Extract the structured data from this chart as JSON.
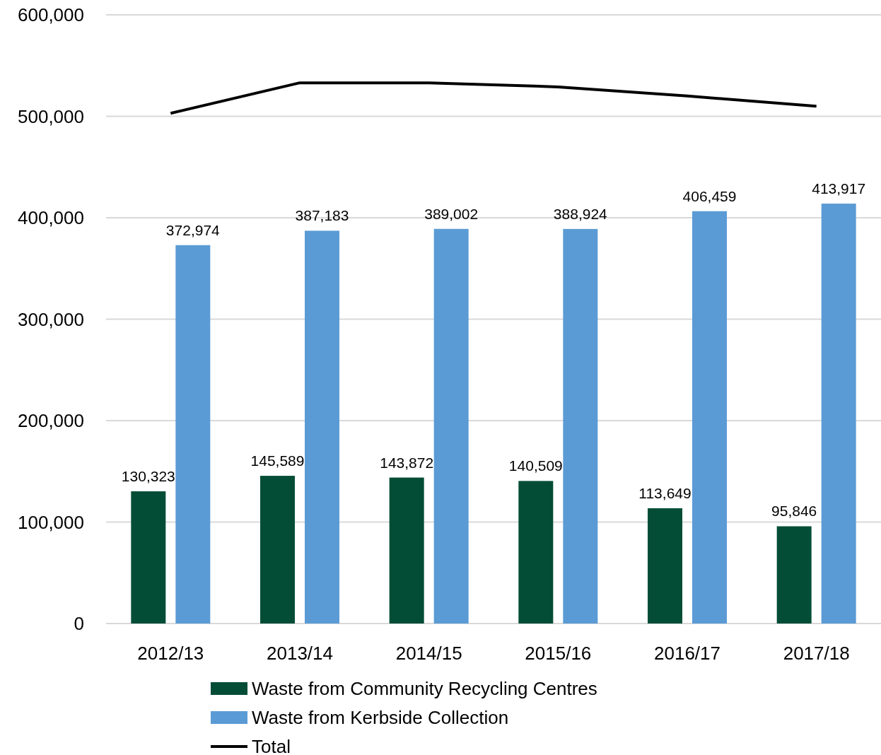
{
  "chart_data": {
    "type": "bar",
    "categories": [
      "2012/13",
      "2013/14",
      "2014/15",
      "2015/16",
      "2016/17",
      "2017/18"
    ],
    "series": [
      {
        "name": "Waste from Community Recycling Centres",
        "color": "#034d36",
        "values": [
          130323,
          145589,
          143872,
          140509,
          113649,
          95846
        ],
        "value_labels": [
          "130,323",
          "145,589",
          "143,872",
          "140,509",
          "113,649",
          "95,846"
        ]
      },
      {
        "name": "Waste from Kerbside Collection",
        "color": "#5b9bd5",
        "values": [
          372974,
          387183,
          389002,
          388924,
          406459,
          413917
        ],
        "value_labels": [
          "372,974",
          "387,183",
          "389,002",
          "388,924",
          "406,459",
          "413,917"
        ]
      },
      {
        "name": "Total",
        "type": "line",
        "color": "#000000",
        "values": [
          503000,
          533000,
          533000,
          529000,
          520000,
          510000
        ]
      }
    ],
    "ylim": [
      0,
      600000
    ],
    "yticks": [
      {
        "value": 0,
        "label": "0"
      },
      {
        "value": 100000,
        "label": "100,000"
      },
      {
        "value": 200000,
        "label": "200,000"
      },
      {
        "value": 300000,
        "label": "300,000"
      },
      {
        "value": 400000,
        "label": "400,000"
      },
      {
        "value": 500000,
        "label": "500,000"
      },
      {
        "value": 600000,
        "label": "600,000"
      }
    ],
    "grid": "y",
    "legend": "bottom"
  }
}
